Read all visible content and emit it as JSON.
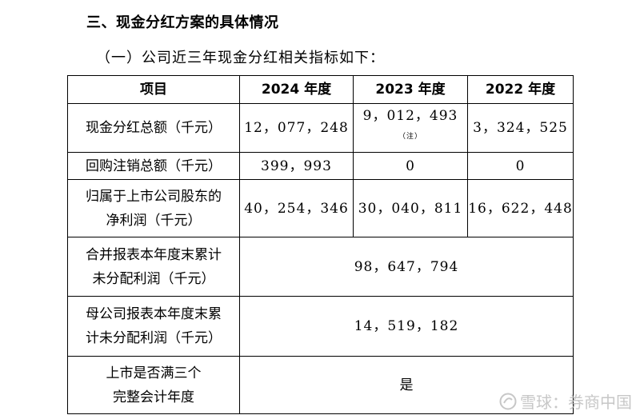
{
  "heading": "三、现金分红方案的具体情况",
  "subheading": "（一）公司近三年现金分红相关指标如下：",
  "table": {
    "headers": [
      "项目",
      "2024 年度",
      "2023 年度",
      "2022 年度"
    ],
    "rows": [
      {
        "label": "现金分红总额（千元）",
        "y2024": "12，077，248",
        "y2023": "9，012，493",
        "y2023_note": "（注）",
        "y2022": "3，324，525"
      },
      {
        "label": "回购注销总额（千元）",
        "y2024": "399，993",
        "y2023": "0",
        "y2022": "0"
      },
      {
        "label_line1": "归属于上市公司股东的",
        "label_line2": "净利润（千元）",
        "y2024": "40，254，346",
        "y2023": "30，040，811",
        "y2022": "16，622，448"
      },
      {
        "label_line1": "合并报表本年度末累计",
        "label_line2": "未分配利润（千元）",
        "merged": "98，647，794"
      },
      {
        "label_line1": "母公司报表本年度末累",
        "label_line2": "计未分配利润（千元）",
        "merged": "14，519，182"
      },
      {
        "label_line1": "上市是否满三个",
        "label_line2": "完整会计年度",
        "merged": "是"
      }
    ]
  },
  "watermark": {
    "text": "雪球：券商中国",
    "icon": "snowball-logo-icon"
  }
}
